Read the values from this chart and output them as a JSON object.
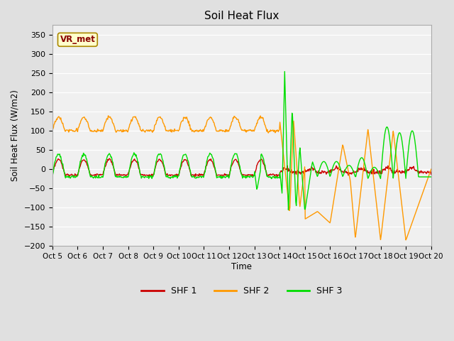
{
  "title": "Soil Heat Flux",
  "ylabel": "Soil Heat Flux (W/m2)",
  "xlabel": "Time",
  "ylim": [
    -200,
    375
  ],
  "yticks": [
    -200,
    -150,
    -100,
    -50,
    0,
    50,
    100,
    150,
    200,
    250,
    300,
    350
  ],
  "xtick_labels": [
    "Oct 5",
    "Oct 6",
    "Oct 7",
    "Oct 8",
    "Oct 9",
    "Oct 10",
    "Oct 11",
    "Oct 12",
    "Oct 13",
    "Oct 14",
    "Oct 15",
    "Oct 16",
    "Oct 17",
    "Oct 18",
    "Oct 19",
    "Oct 20"
  ],
  "colors": {
    "SHF1": "#cc0000",
    "SHF2": "#ff9900",
    "SHF3": "#00dd00",
    "background": "#e0e0e0",
    "plot_bg": "#f0f0f0"
  },
  "legend_label": "VR_met",
  "linewidth": 1.0
}
